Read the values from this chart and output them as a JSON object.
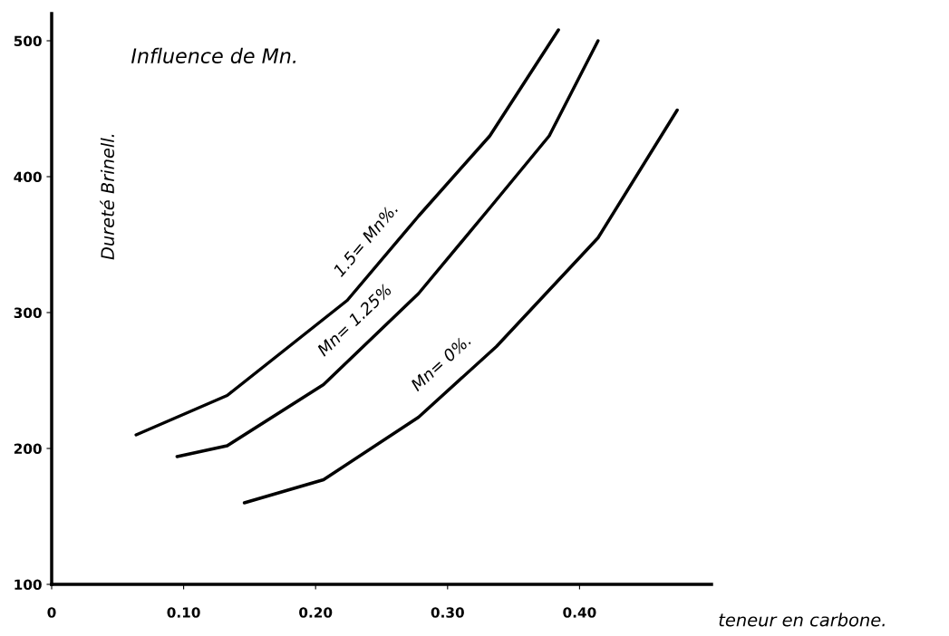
{
  "chart_data": {
    "type": "line",
    "title": "Influence de Mn.",
    "xlabel": "teneur en carbone.",
    "ylabel": "Dureté Brinell.",
    "xlim": [
      0,
      0.5
    ],
    "ylim": [
      100,
      520
    ],
    "xticks": [
      {
        "value": 0,
        "label": "0"
      },
      {
        "value": 0.1,
        "label": "0.10"
      },
      {
        "value": 0.2,
        "label": "0.20"
      },
      {
        "value": 0.3,
        "label": "0.30"
      },
      {
        "value": 0.4,
        "label": "0.40"
      }
    ],
    "yticks": [
      100,
      200,
      300,
      400,
      500
    ],
    "grid": false,
    "legend": false,
    "marker": "none",
    "line_style": "solid",
    "series": [
      {
        "name": "1.5= Mn%.",
        "color": "#000000",
        "x": [
          0.064,
          0.133,
          0.224,
          0.278,
          0.332,
          0.384
        ],
        "values": [
          210,
          239,
          309,
          371,
          430,
          508
        ]
      },
      {
        "name": "Mn= 1.25%",
        "color": "#000000",
        "x": [
          0.095,
          0.133,
          0.206,
          0.278,
          0.332,
          0.377,
          0.414
        ],
        "values": [
          194,
          202,
          247,
          314,
          377,
          430,
          500
        ]
      },
      {
        "name": "Mn= 0%.",
        "color": "#000000",
        "x": [
          0.146,
          0.206,
          0.278,
          0.337,
          0.414,
          0.474
        ],
        "values": [
          160,
          177,
          223,
          275,
          355,
          449
        ]
      }
    ]
  }
}
